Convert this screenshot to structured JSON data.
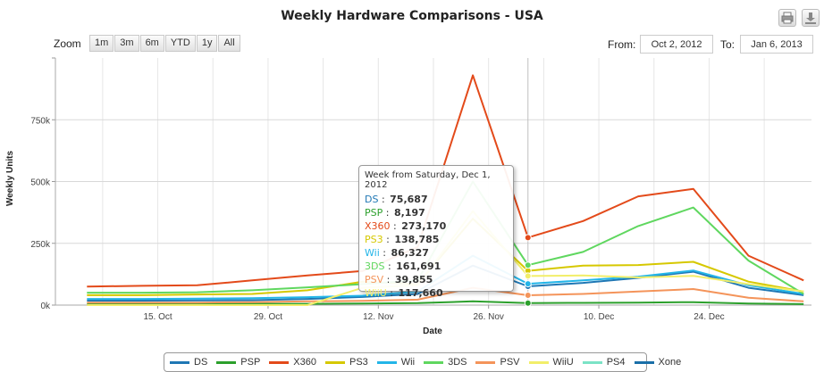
{
  "title": "Weekly Hardware Comparisons - USA",
  "toolbar": {
    "print_icon": "print-icon",
    "export_icon": "download-icon"
  },
  "range_selector": {
    "zoom_label": "Zoom",
    "buttons": [
      "1m",
      "3m",
      "6m",
      "YTD",
      "1y",
      "All"
    ],
    "from_label": "From:",
    "from_value": "Oct 2, 2012",
    "to_label": "To:",
    "to_value": "Jan 6, 2013"
  },
  "tooltip": {
    "header": "Week from Saturday, Dec 1, 2012",
    "rows": [
      {
        "name": "DS",
        "value": "75,687",
        "color": "#1f77b4"
      },
      {
        "name": "PSP",
        "value": "8,197",
        "color": "#2ca02c"
      },
      {
        "name": "X360",
        "value": "273,170",
        "color": "#e34a1a"
      },
      {
        "name": "PS3",
        "value": "138,785",
        "color": "#d6c800"
      },
      {
        "name": "Wii",
        "value": "86,327",
        "color": "#23b5e8"
      },
      {
        "name": "3DS",
        "value": "161,691",
        "color": "#5fd75f"
      },
      {
        "name": "PSV",
        "value": "39,855",
        "color": "#f4945a"
      },
      {
        "name": "WiiU",
        "value": "117,660",
        "color": "#f2ee6a"
      }
    ]
  },
  "chart_data": {
    "type": "line",
    "title": "Weekly Hardware Comparisons - USA",
    "xlabel": "Date",
    "ylabel": "Weekly Units",
    "x_dates": [
      "2012-10-06",
      "2012-10-13",
      "2012-10-20",
      "2012-10-27",
      "2012-11-03",
      "2012-11-10",
      "2012-11-17",
      "2012-11-24",
      "2012-12-01",
      "2012-12-08",
      "2012-12-15",
      "2012-12-22",
      "2012-12-29",
      "2013-01-05"
    ],
    "x_ticks": [
      "15. Oct",
      "29. Oct",
      "12. Nov",
      "26. Nov",
      "10. Dec",
      "24. Dec"
    ],
    "x_tick_dates": [
      "2012-10-15",
      "2012-10-29",
      "2012-11-12",
      "2012-11-26",
      "2012-12-10",
      "2012-12-24"
    ],
    "x_range": [
      "2012-10-02",
      "2013-01-06"
    ],
    "y_ticks": [
      "0k",
      "250k",
      "500k",
      "750k"
    ],
    "y_tick_values": [
      0,
      250000,
      500000,
      750000
    ],
    "ylim": [
      0,
      1000000
    ],
    "grid": true,
    "legend_position": "bottom",
    "highlight_date": "2012-12-01",
    "series": [
      {
        "name": "DS",
        "color": "#1f77b4",
        "values": [
          18000,
          18000,
          19000,
          20000,
          25000,
          33000,
          45000,
          160000,
          75687,
          90000,
          110000,
          135000,
          70000,
          40000
        ]
      },
      {
        "name": "PSP",
        "color": "#2ca02c",
        "values": [
          5000,
          5000,
          5000,
          5000,
          5000,
          6000,
          8000,
          15000,
          8197,
          9000,
          10000,
          12000,
          6000,
          4000
        ]
      },
      {
        "name": "X360",
        "color": "#e34a1a",
        "values": [
          75000,
          78000,
          80000,
          100000,
          120000,
          138000,
          235000,
          930000,
          273170,
          340000,
          440000,
          470000,
          200000,
          100000
        ]
      },
      {
        "name": "PS3",
        "color": "#d6c800",
        "values": [
          40000,
          40000,
          43000,
          45000,
          60000,
          95000,
          85000,
          350000,
          138785,
          160000,
          162000,
          175000,
          95000,
          55000
        ]
      },
      {
        "name": "Wii",
        "color": "#23b5e8",
        "values": [
          25000,
          25000,
          26000,
          28000,
          32000,
          38000,
          55000,
          200000,
          86327,
          100000,
          115000,
          140000,
          80000,
          45000
        ]
      },
      {
        "name": "3DS",
        "color": "#5fd75f",
        "values": [
          50000,
          50000,
          52000,
          60000,
          72000,
          85000,
          100000,
          500000,
          161691,
          215000,
          320000,
          395000,
          180000,
          45000
        ]
      },
      {
        "name": "PSV",
        "color": "#f4945a",
        "values": [
          10000,
          10000,
          10000,
          12000,
          15000,
          17000,
          22000,
          70000,
          39855,
          45000,
          55000,
          65000,
          30000,
          15000
        ]
      },
      {
        "name": "WiiU",
        "color": "#f2ee6a",
        "values": [
          0,
          0,
          0,
          0,
          0,
          70000,
          80000,
          380000,
          117660,
          120000,
          112000,
          118000,
          85000,
          55000
        ]
      },
      {
        "name": "PS4",
        "color": "#7be3c6",
        "values": []
      },
      {
        "name": "Xone",
        "color": "#1a6fa8",
        "values": []
      }
    ]
  }
}
